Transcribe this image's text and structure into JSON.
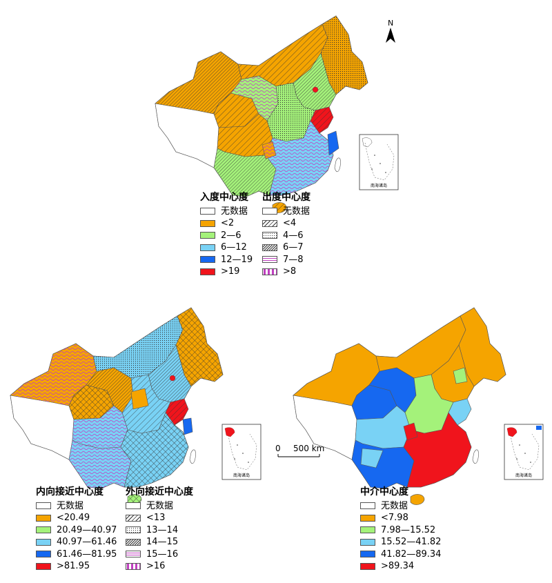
{
  "colors": {
    "none": "#ffffff",
    "orange": "#f5a400",
    "green": "#a4f27a",
    "lightblue": "#79d2f5",
    "blue": "#1668f0",
    "red": "#f0141c",
    "pink": "#d264d2",
    "border": "#555555"
  },
  "north_label": "N",
  "scale_bar": {
    "zero": "0",
    "label": "500 km"
  },
  "inset_label": "南海诸岛",
  "legends": {
    "in_degree": {
      "title": "入度中心度",
      "items": [
        {
          "label": "无数据",
          "fill": "none"
        },
        {
          "label": "<2",
          "fill": "orange"
        },
        {
          "label": "2—6",
          "fill": "green"
        },
        {
          "label": "6—12",
          "fill": "lightblue"
        },
        {
          "label": "12—19",
          "fill": "blue"
        },
        {
          "label": ">19",
          "fill": "red"
        }
      ]
    },
    "out_degree": {
      "title": "出度中心度",
      "items": [
        {
          "label": "无数据",
          "pattern": "none"
        },
        {
          "label": "<4",
          "pattern": "hatch-sparse"
        },
        {
          "label": "4—6",
          "pattern": "dots"
        },
        {
          "label": "6—7",
          "pattern": "hatch-dense"
        },
        {
          "label": "7—8",
          "pattern": "pink-waves"
        },
        {
          "label": ">8",
          "pattern": "pink-lines"
        }
      ]
    },
    "in_closeness": {
      "title": "内向接近中心度",
      "items": [
        {
          "label": "无数据",
          "fill": "none"
        },
        {
          "label": "<20.49",
          "fill": "orange"
        },
        {
          "label": "20.49—40.97",
          "fill": "green"
        },
        {
          "label": "40.97—61.46",
          "fill": "lightblue"
        },
        {
          "label": "61.46—81.95",
          "fill": "blue"
        },
        {
          "label": ">81.95",
          "fill": "red"
        }
      ]
    },
    "out_closeness": {
      "title": "外向接近中心度",
      "items": [
        {
          "label": "无数据",
          "pattern": "none"
        },
        {
          "label": "<13",
          "pattern": "hatch-sparse"
        },
        {
          "label": "13—14",
          "pattern": "dots"
        },
        {
          "label": "14—15",
          "pattern": "hatch-dense"
        },
        {
          "label": "15—16",
          "pattern": "pink-waves"
        },
        {
          "label": ">16",
          "pattern": "pink-lines"
        }
      ]
    },
    "betweenness": {
      "title": "中介中心度",
      "items": [
        {
          "label": "无数据",
          "fill": "none"
        },
        {
          "label": "<7.98",
          "fill": "orange"
        },
        {
          "label": "7.98—15.52",
          "fill": "green"
        },
        {
          "label": "15.52—41.82",
          "fill": "lightblue"
        },
        {
          "label": "41.82—89.34",
          "fill": "blue"
        },
        {
          "label": ">89.34",
          "fill": "red"
        }
      ]
    }
  }
}
